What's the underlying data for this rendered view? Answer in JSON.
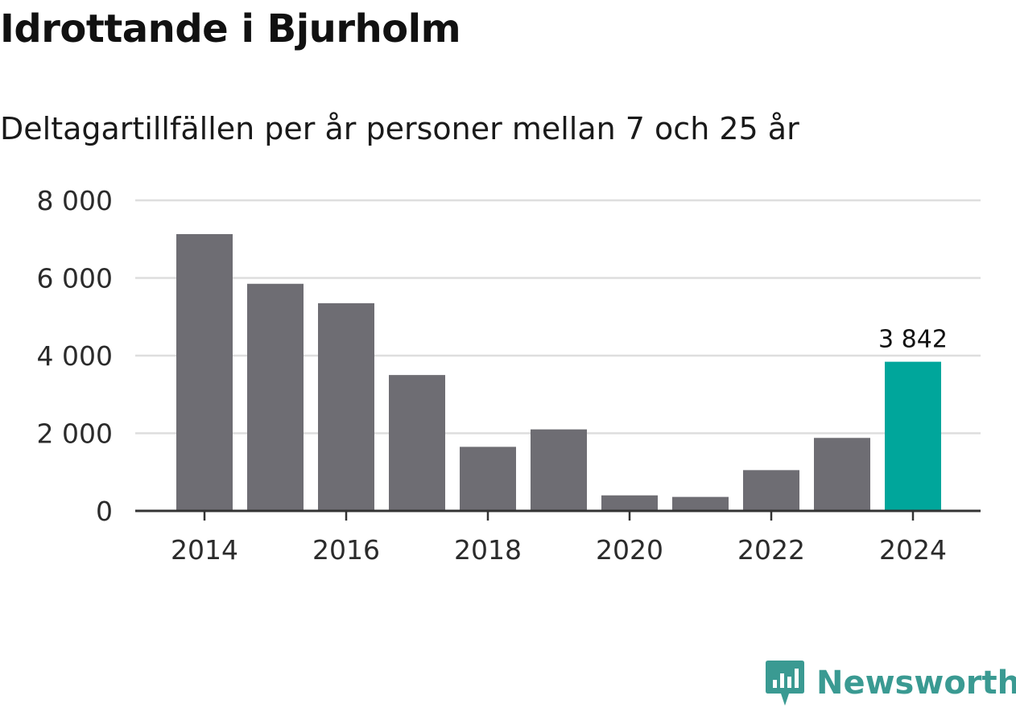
{
  "title": "Idrottande i Bjurholm",
  "subtitle": "Deltagartillfällen per år personer mellan 7 och 25 år",
  "brand": {
    "name": "Newsworthy",
    "icon": "newsworthy-logo-icon",
    "color": "#3a9a92"
  },
  "colors": {
    "bar": "#6e6d73",
    "highlight": "#00a69b",
    "grid": "#dedede",
    "axis": "#333333"
  },
  "chart_data": {
    "type": "bar",
    "title": "Idrottande i Bjurholm",
    "subtitle": "Deltagartillfällen per år personer mellan 7 och 25 år",
    "xlabel": "",
    "ylabel": "",
    "categories": [
      2014,
      2015,
      2016,
      2017,
      2018,
      2019,
      2020,
      2021,
      2022,
      2023,
      2024
    ],
    "values": [
      7130,
      5850,
      5350,
      3500,
      1650,
      2100,
      400,
      360,
      1050,
      1880,
      3842
    ],
    "ylim": [
      0,
      8000
    ],
    "yticks": [
      0,
      2000,
      4000,
      6000,
      8000
    ],
    "ytick_labels": [
      "0",
      "2 000",
      "4 000",
      "6 000",
      "8 000"
    ],
    "xtick_labels": [
      "2014",
      "2016",
      "2018",
      "2020",
      "2022",
      "2024"
    ],
    "xtick_years": [
      2014,
      2016,
      2018,
      2020,
      2022,
      2024
    ],
    "grid": true,
    "highlight_index": 10,
    "annotations": [
      {
        "category": 2024,
        "text": "3 842"
      }
    ]
  }
}
